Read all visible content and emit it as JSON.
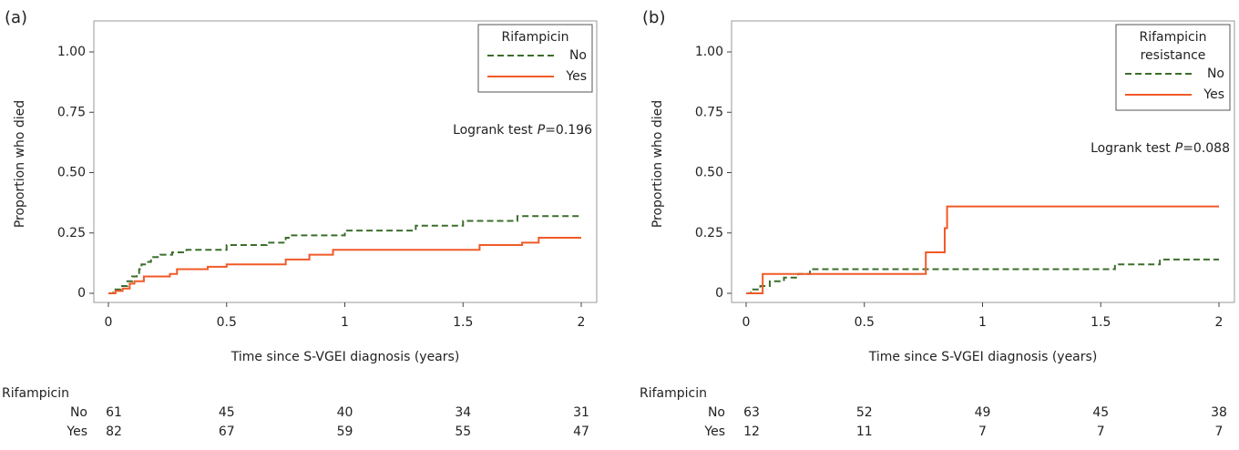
{
  "chart_data": [
    {
      "type": "step",
      "panel_label": "(a)",
      "ylabel": "Proportion who died",
      "xlabel": "Time since S-VGEI diagnosis (years)",
      "xlim": [
        0,
        2
      ],
      "xticks": [
        0,
        0.5,
        1,
        1.5,
        2
      ],
      "ylim": [
        0,
        1
      ],
      "yticks": [
        {
          "value": 0,
          "label": "0"
        },
        {
          "value": 0.25,
          "label": "0.25"
        },
        {
          "value": 0.5,
          "label": "0.50"
        },
        {
          "value": 0.75,
          "label": "0.75"
        },
        {
          "value": 1,
          "label": "1.00"
        }
      ],
      "legend_title": [
        "Rifampicin"
      ],
      "legend_position": "upper right",
      "annotation": {
        "prefix": "Logrank test",
        "italic": "P",
        "suffix": "=0.196"
      },
      "series": [
        {
          "name": "No",
          "color": "#3b6e2b",
          "dashed": true,
          "x": [
            0,
            0.02,
            0.05,
            0.08,
            0.1,
            0.12,
            0.13,
            0.14,
            0.16,
            0.18,
            0.22,
            0.27,
            0.33,
            0.5,
            0.67,
            0.75,
            0.77,
            1.0,
            1.3,
            1.5,
            1.73,
            2.0
          ],
          "values": [
            0,
            0.016,
            0.03,
            0.05,
            0.07,
            0.08,
            0.1,
            0.12,
            0.13,
            0.15,
            0.16,
            0.17,
            0.18,
            0.2,
            0.21,
            0.23,
            0.24,
            0.26,
            0.28,
            0.3,
            0.32,
            0.32
          ]
        },
        {
          "name": "Yes",
          "color": "#f05a28",
          "dashed": false,
          "x": [
            0,
            0.03,
            0.06,
            0.09,
            0.11,
            0.15,
            0.26,
            0.29,
            0.42,
            0.5,
            0.75,
            0.85,
            0.95,
            1.57,
            1.75,
            1.82,
            2.0
          ],
          "values": [
            0,
            0.01,
            0.02,
            0.04,
            0.05,
            0.07,
            0.08,
            0.1,
            0.11,
            0.12,
            0.14,
            0.16,
            0.18,
            0.2,
            0.21,
            0.23,
            0.23
          ]
        }
      ],
      "risk_table": {
        "title": "Rifampicin",
        "rows": [
          {
            "label": "No",
            "values": [
              61,
              45,
              40,
              34,
              31
            ]
          },
          {
            "label": "Yes",
            "values": [
              82,
              67,
              59,
              55,
              47
            ]
          }
        ]
      }
    },
    {
      "type": "step",
      "panel_label": "(b)",
      "ylabel": "Proportion who died",
      "xlabel": "Time since S-VGEI diagnosis (years)",
      "xlim": [
        0,
        2
      ],
      "xticks": [
        0,
        0.5,
        1,
        1.5,
        2
      ],
      "ylim": [
        0,
        1
      ],
      "yticks": [
        {
          "value": 0,
          "label": "0"
        },
        {
          "value": 0.25,
          "label": "0.25"
        },
        {
          "value": 0.5,
          "label": "0.50"
        },
        {
          "value": 0.75,
          "label": "0.75"
        },
        {
          "value": 1,
          "label": "1.00"
        }
      ],
      "legend_title": [
        "Rifampicin",
        "resistance"
      ],
      "legend_position": "upper right",
      "annotation": {
        "prefix": "Logrank test",
        "italic": "P",
        "suffix": "=0.088"
      },
      "series": [
        {
          "name": "No",
          "color": "#3b6e2b",
          "dashed": true,
          "x": [
            0,
            0.02,
            0.06,
            0.1,
            0.16,
            0.22,
            0.27,
            1.56,
            1.75,
            2.0
          ],
          "values": [
            0,
            0.016,
            0.03,
            0.05,
            0.065,
            0.08,
            0.1,
            0.12,
            0.14,
            0.14
          ]
        },
        {
          "name": "Yes",
          "color": "#f05a28",
          "dashed": false,
          "x": [
            0,
            0.07,
            0.76,
            0.84,
            0.85,
            2.0
          ],
          "values": [
            0,
            0.08,
            0.17,
            0.27,
            0.36,
            0.36
          ]
        }
      ],
      "risk_table": {
        "title": "Rifampicin",
        "rows": [
          {
            "label": "No",
            "values": [
              63,
              52,
              49,
              45,
              38
            ]
          },
          {
            "label": "Yes",
            "values": [
              12,
              11,
              7,
              7,
              7
            ]
          }
        ]
      }
    }
  ]
}
